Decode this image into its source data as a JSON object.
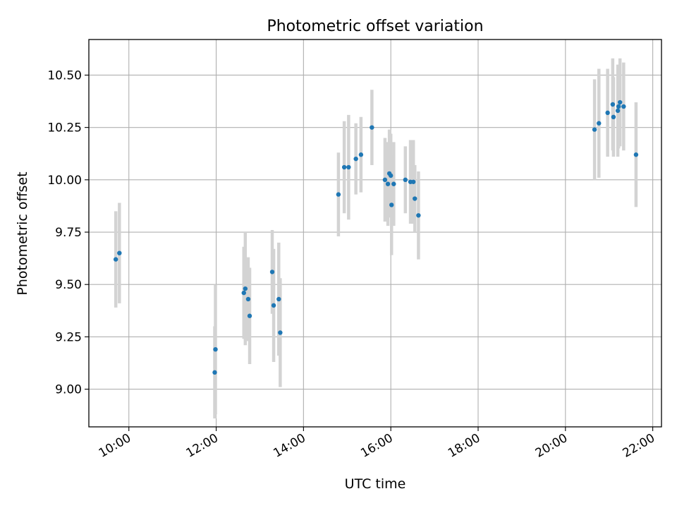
{
  "chart_data": {
    "type": "scatter",
    "title": "Photometric offset variation",
    "xlabel": "UTC time",
    "ylabel": "Photometric offset",
    "xlim": [
      "09:05",
      "22:12"
    ],
    "ylim": [
      8.82,
      10.67
    ],
    "x_ticks": [
      "10:00",
      "12:00",
      "14:00",
      "16:00",
      "18:00",
      "20:00",
      "22:00"
    ],
    "y_ticks": [
      "9.00",
      "9.25",
      "9.50",
      "9.75",
      "10.00",
      "10.25",
      "10.50"
    ],
    "grid": true,
    "marker_color": "#1f77b4",
    "errorbar_color": "#d3d3d3",
    "series": [
      {
        "points": [
          {
            "time": "09:42",
            "value": 9.62,
            "error": 0.23
          },
          {
            "time": "09:47",
            "value": 9.65,
            "error": 0.24
          },
          {
            "time": "11:58",
            "value": 9.08,
            "error": 0.22
          },
          {
            "time": "11:59",
            "value": 9.19,
            "error": 0.31
          },
          {
            "time": "12:38",
            "value": 9.46,
            "error": 0.22
          },
          {
            "time": "12:40",
            "value": 9.48,
            "error": 0.27
          },
          {
            "time": "12:44",
            "value": 9.43,
            "error": 0.2
          },
          {
            "time": "12:46",
            "value": 9.35,
            "error": 0.23
          },
          {
            "time": "13:17",
            "value": 9.56,
            "error": 0.2
          },
          {
            "time": "13:19",
            "value": 9.4,
            "error": 0.27
          },
          {
            "time": "13:26",
            "value": 9.43,
            "error": 0.27
          },
          {
            "time": "13:28",
            "value": 9.27,
            "error": 0.26
          },
          {
            "time": "14:48",
            "value": 9.93,
            "error": 0.2
          },
          {
            "time": "14:56",
            "value": 10.06,
            "error": 0.22
          },
          {
            "time": "15:02",
            "value": 10.06,
            "error": 0.25
          },
          {
            "time": "15:12",
            "value": 10.1,
            "error": 0.17
          },
          {
            "time": "15:19",
            "value": 10.12,
            "error": 0.18
          },
          {
            "time": "15:34",
            "value": 10.25,
            "error": 0.18
          },
          {
            "time": "15:52",
            "value": 10.0,
            "error": 0.2
          },
          {
            "time": "15:56",
            "value": 9.98,
            "error": 0.2
          },
          {
            "time": "15:58",
            "value": 10.03,
            "error": 0.21
          },
          {
            "time": "16:00",
            "value": 10.02,
            "error": 0.2
          },
          {
            "time": "16:01",
            "value": 9.88,
            "error": 0.24
          },
          {
            "time": "16:04",
            "value": 9.98,
            "error": 0.2
          },
          {
            "time": "16:20",
            "value": 10.0,
            "error": 0.16
          },
          {
            "time": "16:27",
            "value": 9.99,
            "error": 0.2
          },
          {
            "time": "16:31",
            "value": 9.99,
            "error": 0.2
          },
          {
            "time": "16:33",
            "value": 9.91,
            "error": 0.16
          },
          {
            "time": "16:38",
            "value": 9.83,
            "error": 0.21
          },
          {
            "time": "20:40",
            "value": 10.24,
            "error": 0.24
          },
          {
            "time": "20:46",
            "value": 10.27,
            "error": 0.26
          },
          {
            "time": "20:58",
            "value": 10.32,
            "error": 0.21
          },
          {
            "time": "21:05",
            "value": 10.36,
            "error": 0.22
          },
          {
            "time": "21:06",
            "value": 10.3,
            "error": 0.19
          },
          {
            "time": "21:12",
            "value": 10.33,
            "error": 0.22
          },
          {
            "time": "21:13",
            "value": 10.35,
            "error": 0.2
          },
          {
            "time": "21:15",
            "value": 10.37,
            "error": 0.21
          },
          {
            "time": "21:20",
            "value": 10.35,
            "error": 0.21
          },
          {
            "time": "21:37",
            "value": 10.12,
            "error": 0.25
          }
        ]
      }
    ]
  }
}
